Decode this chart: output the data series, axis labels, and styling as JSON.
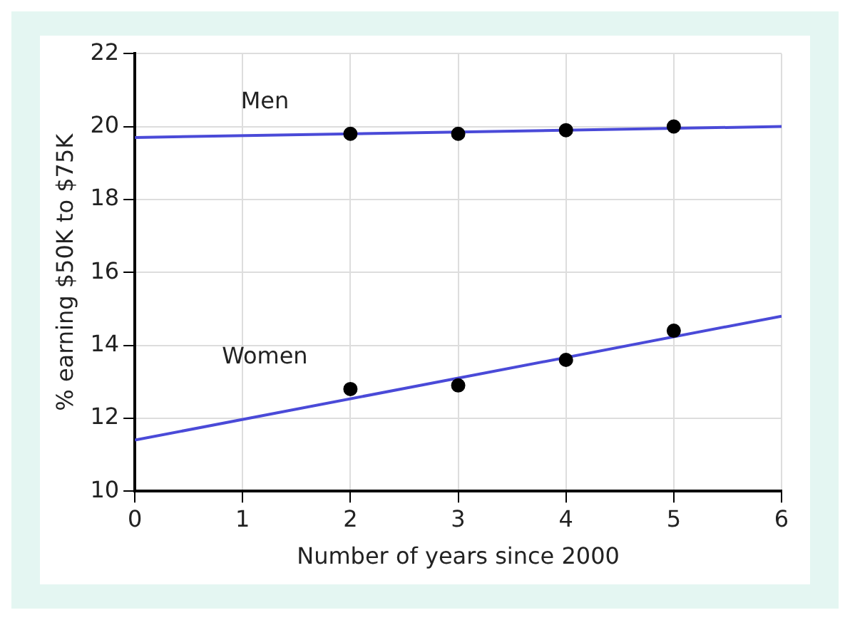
{
  "chart_data": {
    "type": "scatter",
    "xlabel": "Number of years since 2000",
    "ylabel": "% earning $50K to $75K",
    "xlim": [
      0,
      6
    ],
    "xticks": [
      0,
      1,
      2,
      3,
      4,
      5,
      6
    ],
    "ylim": [
      10,
      22
    ],
    "yticks": [
      10,
      12,
      14,
      16,
      18,
      20,
      22
    ],
    "grid": true,
    "line_style": "solid",
    "series": [
      {
        "name": "Men",
        "marker": "circle",
        "color": "#000000",
        "x": [
          2,
          3,
          4,
          5
        ],
        "values": [
          19.8,
          19.8,
          19.9,
          20.0
        ]
      },
      {
        "type": "line",
        "color": "#4a4ad8",
        "x": [
          0,
          6
        ],
        "values": [
          19.7,
          20.0
        ]
      },
      {
        "name": "Women",
        "marker": "circle",
        "color": "#000000",
        "x": [
          2,
          3,
          4,
          5
        ],
        "values": [
          12.8,
          12.9,
          13.6,
          14.4
        ]
      },
      {
        "type": "line",
        "color": "#4a4ad8",
        "x": [
          0,
          6
        ],
        "values": [
          11.4,
          14.8
        ]
      }
    ]
  }
}
